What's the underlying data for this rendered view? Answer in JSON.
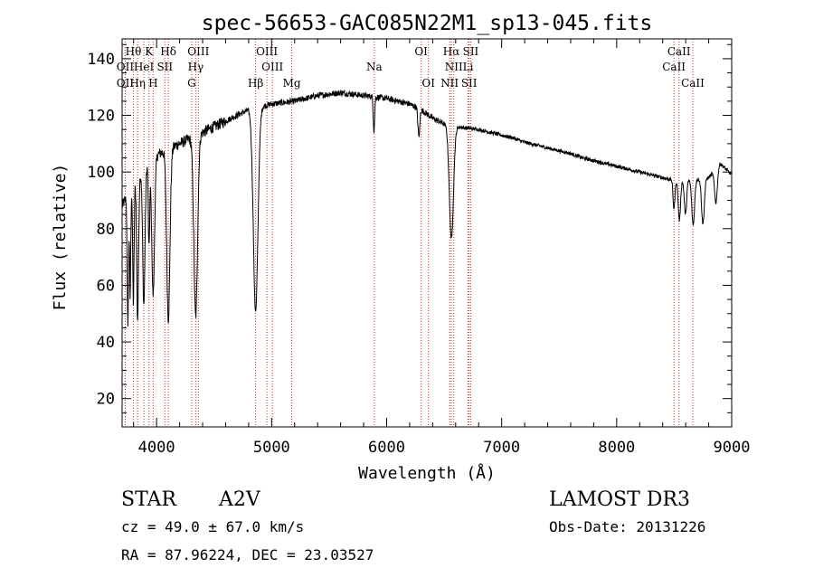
{
  "chart_data": {
    "type": "line",
    "title": "spec-56653-GAC085N22M1_sp13-045.fits",
    "xlabel": "Wavelength (Å)",
    "ylabel": "Flux (relative)",
    "xlim": [
      3700,
      9000
    ],
    "ylim": [
      10,
      147
    ],
    "xticks": [
      4000,
      5000,
      6000,
      7000,
      8000,
      9000
    ],
    "yticks": [
      20,
      40,
      60,
      80,
      100,
      120,
      140
    ],
    "continuum": [
      [
        3700,
        88
      ],
      [
        3800,
        96
      ],
      [
        3900,
        102
      ],
      [
        4000,
        106
      ],
      [
        4100,
        108
      ],
      [
        4200,
        110
      ],
      [
        4300,
        112
      ],
      [
        4400,
        114
      ],
      [
        4500,
        116
      ],
      [
        4600,
        118
      ],
      [
        4700,
        120
      ],
      [
        4800,
        122
      ],
      [
        4900,
        123
      ],
      [
        5000,
        124
      ],
      [
        5100,
        124.5
      ],
      [
        5200,
        125
      ],
      [
        5300,
        126
      ],
      [
        5400,
        127
      ],
      [
        5500,
        127.5
      ],
      [
        5600,
        128
      ],
      [
        5700,
        127.5
      ],
      [
        5800,
        127
      ],
      [
        5900,
        126.5
      ],
      [
        6000,
        126
      ],
      [
        6100,
        125
      ],
      [
        6200,
        124
      ],
      [
        6300,
        122
      ],
      [
        6400,
        119
      ],
      [
        6500,
        117
      ],
      [
        6600,
        116
      ],
      [
        6700,
        115.5
      ],
      [
        6800,
        115
      ],
      [
        6900,
        114
      ],
      [
        7000,
        113
      ],
      [
        7100,
        112
      ],
      [
        7200,
        110.5
      ],
      [
        7300,
        109.5
      ],
      [
        7400,
        108.5
      ],
      [
        7500,
        107.5
      ],
      [
        7600,
        106.5
      ],
      [
        7700,
        105
      ],
      [
        7800,
        104
      ],
      [
        7900,
        103
      ],
      [
        8000,
        102
      ],
      [
        8100,
        101
      ],
      [
        8200,
        100
      ],
      [
        8300,
        99
      ],
      [
        8400,
        98
      ],
      [
        8500,
        97
      ],
      [
        8600,
        97
      ],
      [
        8700,
        97.5
      ],
      [
        8800,
        98
      ],
      [
        8900,
        103
      ],
      [
        9000,
        99
      ]
    ],
    "absorption_features": [
      {
        "center": 3750,
        "depth": 45,
        "width": 6
      },
      {
        "center": 3770,
        "depth": 38,
        "width": 5
      },
      {
        "center": 3798,
        "depth": 42,
        "width": 6
      },
      {
        "center": 3835,
        "depth": 50,
        "width": 8
      },
      {
        "center": 3889,
        "depth": 48,
        "width": 10
      },
      {
        "center": 3934,
        "depth": 30,
        "width": 6
      },
      {
        "center": 3970,
        "depth": 48,
        "width": 12
      },
      {
        "center": 4102,
        "depth": 60,
        "width": 14
      },
      {
        "center": 4340,
        "depth": 64,
        "width": 16
      },
      {
        "center": 4861,
        "depth": 72,
        "width": 20
      },
      {
        "center": 5890,
        "depth": 12,
        "width": 6
      },
      {
        "center": 6280,
        "depth": 10,
        "width": 8
      },
      {
        "center": 6563,
        "depth": 40,
        "width": 18
      },
      {
        "center": 8498,
        "depth": 10,
        "width": 8
      },
      {
        "center": 8545,
        "depth": 14,
        "width": 10
      },
      {
        "center": 8598,
        "depth": 12,
        "width": 10
      },
      {
        "center": 8665,
        "depth": 16,
        "width": 12
      },
      {
        "center": 8750,
        "depth": 16,
        "width": 12
      },
      {
        "center": 8863,
        "depth": 12,
        "width": 12
      }
    ],
    "line_markers": [
      {
        "label": "Hθ",
        "wl": 3798,
        "row": 0
      },
      {
        "label": "K",
        "wl": 3934,
        "row": 0
      },
      {
        "label": "Hδ",
        "wl": 4102,
        "row": 0
      },
      {
        "label": "OIII",
        "wl": 4363,
        "row": 0
      },
      {
        "label": "OIII",
        "wl": 4959,
        "row": 0
      },
      {
        "label": "OI",
        "wl": 6300,
        "row": 0
      },
      {
        "label": "Hα",
        "wl": 6563,
        "row": 0
      },
      {
        "label": "SII",
        "wl": 6731,
        "row": 0
      },
      {
        "label": "CaII",
        "wl": 8542,
        "row": 0
      },
      {
        "label": "OII",
        "wl": 3727,
        "row": 1
      },
      {
        "label": "HeI",
        "wl": 3889,
        "row": 1
      },
      {
        "label": "SII",
        "wl": 4072,
        "row": 1
      },
      {
        "label": "Hγ",
        "wl": 4340,
        "row": 1
      },
      {
        "label": "OIII",
        "wl": 5007,
        "row": 1
      },
      {
        "label": "Na",
        "wl": 5893,
        "row": 1
      },
      {
        "label": "NII",
        "wl": 6584,
        "row": 1
      },
      {
        "label": "Li",
        "wl": 6708,
        "row": 1
      },
      {
        "label": "CaII",
        "wl": 8498,
        "row": 1
      },
      {
        "label": "OII",
        "wl": 3727,
        "row": 2
      },
      {
        "label": "Hη",
        "wl": 3835,
        "row": 2
      },
      {
        "label": "H",
        "wl": 3970,
        "row": 2
      },
      {
        "label": "G",
        "wl": 4305,
        "row": 2
      },
      {
        "label": "Hβ",
        "wl": 4861,
        "row": 2
      },
      {
        "label": "Mg",
        "wl": 5175,
        "row": 2
      },
      {
        "label": "OI",
        "wl": 6363,
        "row": 2
      },
      {
        "label": "NII",
        "wl": 6548,
        "row": 2
      },
      {
        "label": "SII",
        "wl": 6717,
        "row": 2
      },
      {
        "label": "CaII",
        "wl": 8662,
        "row": 2
      }
    ],
    "marker_color": "#d0302a",
    "line_color": "#000000"
  },
  "info": {
    "object_class": "STAR",
    "subclass": "A2V",
    "survey": "LAMOST DR3",
    "cz": "cz = 49.0 ± 67.0 km/s",
    "obs_date": "Obs-Date: 20131226",
    "coords": "RA =  87.96224, DEC =  23.03527"
  }
}
